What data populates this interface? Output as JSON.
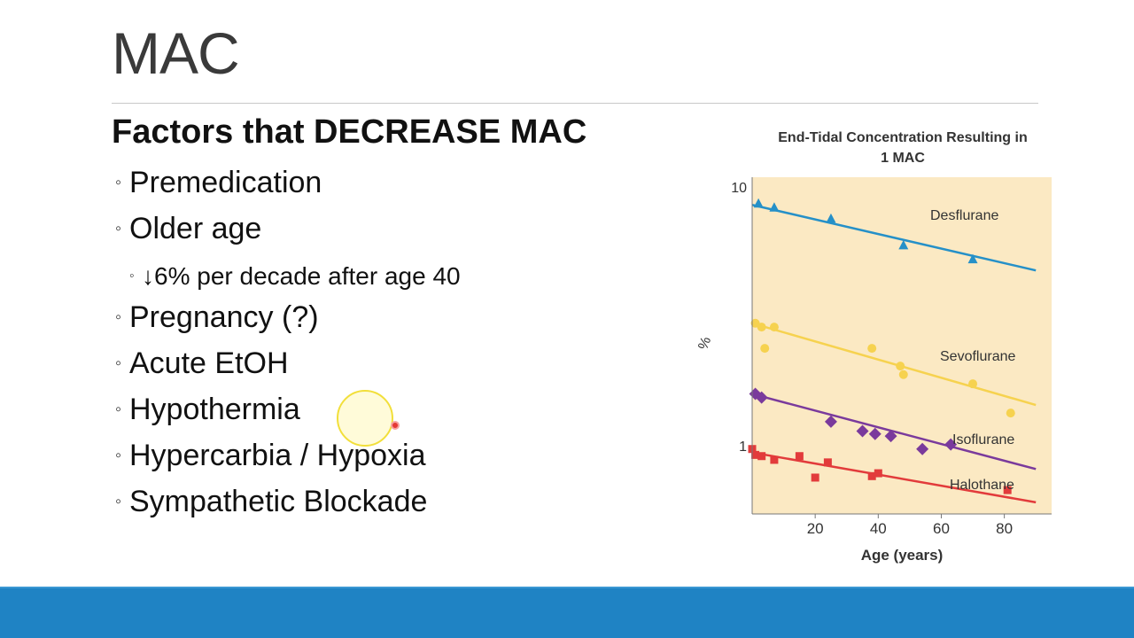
{
  "slide": {
    "title": "MAC",
    "heading": "Factors that DECREASE MAC",
    "bullets": [
      {
        "text": "Premedication",
        "level": 1
      },
      {
        "text": "Older age",
        "level": 1
      },
      {
        "text": "↓6% per decade after age 40",
        "level": 2
      },
      {
        "text": "Pregnancy (?)",
        "level": 1
      },
      {
        "text": "Acute EtOH",
        "level": 1
      },
      {
        "text": "Hypothermia",
        "level": 1
      },
      {
        "text": "Hypercarbia / Hypoxia",
        "level": 1
      },
      {
        "text": "Sympathetic Blockade",
        "level": 1
      }
    ],
    "bullet_marker": "◦",
    "accent_color": "#1f83c4"
  },
  "chart_data": {
    "type": "scatter",
    "title": "End-Tidal Concentration Resulting in 1 MAC",
    "xlabel": "Age (years)",
    "ylabel": "%",
    "x_ticks": [
      "20",
      "40",
      "60",
      "80"
    ],
    "y_ticks": [
      "10",
      "1"
    ],
    "xlim": [
      0,
      95
    ],
    "ylim": [
      0.55,
      11
    ],
    "y_scale": "log",
    "background": "#fbe9c3",
    "series": [
      {
        "name": "Desflurane",
        "color": "#2590c8",
        "marker": "triangle",
        "line": [
          [
            0,
            8.6
          ],
          [
            90,
            4.8
          ]
        ],
        "points": [
          [
            2,
            8.7
          ],
          [
            7,
            8.4
          ],
          [
            25,
            7.6
          ],
          [
            48,
            6.0
          ],
          [
            70,
            5.3
          ]
        ]
      },
      {
        "name": "Sevoflurane",
        "color": "#f6d24f",
        "marker": "circle",
        "line": [
          [
            0,
            3.0
          ],
          [
            90,
            1.45
          ]
        ],
        "points": [
          [
            1,
            3.0
          ],
          [
            3,
            2.9
          ],
          [
            4,
            2.4
          ],
          [
            7,
            2.9
          ],
          [
            38,
            2.4
          ],
          [
            47,
            2.05
          ],
          [
            48,
            1.9
          ],
          [
            70,
            1.75
          ],
          [
            82,
            1.35
          ]
        ]
      },
      {
        "name": "Isoflurane",
        "color": "#7a3a9c",
        "marker": "diamond",
        "line": [
          [
            0,
            1.6
          ],
          [
            90,
            0.82
          ]
        ],
        "points": [
          [
            1,
            1.6
          ],
          [
            3,
            1.55
          ],
          [
            25,
            1.25
          ],
          [
            35,
            1.15
          ],
          [
            39,
            1.12
          ],
          [
            44,
            1.1
          ],
          [
            54,
            0.98
          ],
          [
            63,
            1.02
          ]
        ]
      },
      {
        "name": "Halothane",
        "color": "#e23b3b",
        "marker": "square",
        "line": [
          [
            0,
            0.95
          ],
          [
            90,
            0.61
          ]
        ],
        "points": [
          [
            0,
            0.98
          ],
          [
            1,
            0.93
          ],
          [
            3,
            0.92
          ],
          [
            7,
            0.89
          ],
          [
            15,
            0.92
          ],
          [
            20,
            0.76
          ],
          [
            24,
            0.87
          ],
          [
            38,
            0.77
          ],
          [
            40,
            0.79
          ],
          [
            81,
            0.68
          ]
        ]
      }
    ]
  }
}
